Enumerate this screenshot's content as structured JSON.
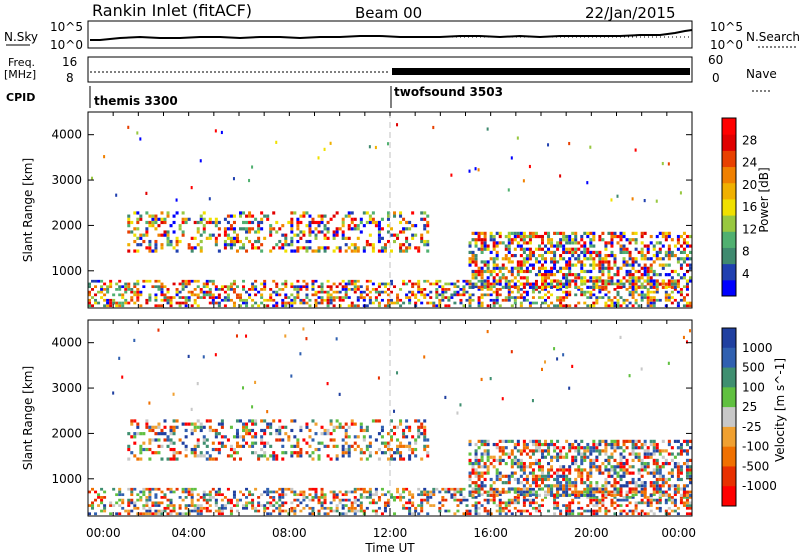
{
  "header": {
    "title": "Rankin Inlet (fitACF)",
    "beam": "Beam 00",
    "date": "22/Jan/2015"
  },
  "strips": {
    "nsky": {
      "label": "N.Sky",
      "tick_top": "10^5",
      "tick_bottom": "10^0"
    },
    "nsearch": {
      "label": "N.Search",
      "tick_top": "10^5",
      "tick_bottom": "10^0"
    },
    "freq": {
      "label_line1": "Freq.",
      "label_line2": "[MHz]",
      "tick_top": "16",
      "tick_bottom": "8"
    },
    "nave": {
      "label": "Nave",
      "tick_top": "60",
      "tick_bottom": "0"
    },
    "cpid": {
      "label": "CPID",
      "mode1": "themis 3300",
      "mode2": "twofsound 3503"
    }
  },
  "colors": {
    "power_scale": [
      "#0000ff",
      "#2040b0",
      "#3f8a6f",
      "#50b070",
      "#98c840",
      "#f0e000",
      "#f0b000",
      "#f08000",
      "#e84000",
      "#e00000",
      "#ff0000"
    ],
    "velocity_scale": [
      "#2040a0",
      "#3060b0",
      "#3f8f70",
      "#60c040",
      "#c8c8c8",
      "#f0a030",
      "#f07000",
      "#e83000",
      "#ff0000"
    ],
    "dashed_line": "#c0c0c0"
  },
  "chart_data": [
    {
      "type": "heatmap",
      "name": "power",
      "ylabel": "Slant Range [km]",
      "y_ticks": [
        "1000",
        "2000",
        "3000",
        "4000"
      ],
      "ylim": [
        180,
        4500
      ],
      "colorbar": {
        "label": "Power [dB]",
        "ticks": [
          "4",
          "8",
          "12",
          "16",
          "20",
          "24",
          "28"
        ],
        "range": [
          0,
          32
        ]
      }
    },
    {
      "type": "heatmap",
      "name": "velocity",
      "ylabel": "Slant Range [km]",
      "y_ticks": [
        "1000",
        "2000",
        "3000",
        "4000"
      ],
      "ylim": [
        180,
        4500
      ],
      "colorbar": {
        "label": "Velocity [m s^-1]",
        "ticks": [
          "1000",
          "500",
          "100",
          "25",
          "-25",
          "-100",
          "-500",
          "-1000"
        ]
      }
    }
  ],
  "x_axis": {
    "label": "Time UT",
    "ticks": [
      "00:00",
      "04:00",
      "08:00",
      "12:00",
      "16:00",
      "20:00",
      "00:00"
    ],
    "xlim_hours": [
      0,
      24
    ],
    "split_hour": 12
  }
}
